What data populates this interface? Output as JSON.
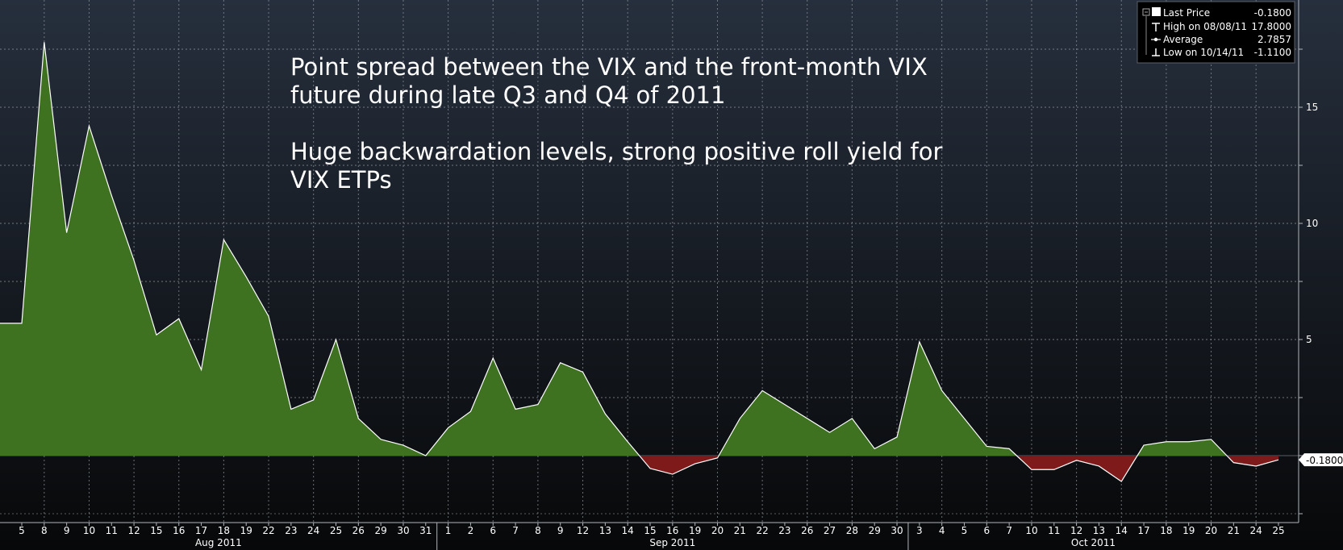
{
  "annotation": {
    "line1": "Point spread between the VIX and the front-month VIX",
    "line2": "future during late Q3 and Q4 of 2011",
    "line3": "Huge backwardation levels, strong positive roll yield for",
    "line4": "VIX ETPs"
  },
  "legend": {
    "last_price_label": "Last Price",
    "last_price_value": "-0.1800",
    "high_label": "High on 08/08/11",
    "high_value": "17.8000",
    "average_label": "Average",
    "average_value": "2.7857",
    "low_label": "Low on 10/14/11",
    "low_value": "-1.1100"
  },
  "last_value_tag": "-0.1800",
  "colors": {
    "positive_fill": "#3e7220",
    "negative_fill": "#7e1a1a",
    "line": "#ffffff",
    "grid": "#8a8f97",
    "bg_top": "#262f3d",
    "bg_bottom": "#070809"
  },
  "chart_data": {
    "type": "area",
    "title": "",
    "xlabel": "",
    "ylabel": "",
    "ylim": [
      -2.6,
      18.2
    ],
    "y_ticks": [
      5,
      10,
      15
    ],
    "grid": true,
    "legend_position": "top-right",
    "months": [
      {
        "label": "Aug 2011",
        "start_index": 0,
        "end_index": 19
      },
      {
        "label": "Sep 2011",
        "start_index": 19,
        "end_index": 40
      },
      {
        "label": "Oct 2011",
        "start_index": 40,
        "end_index": 59
      }
    ],
    "categories": [
      "5",
      "8",
      "9",
      "10",
      "11",
      "12",
      "15",
      "16",
      "17",
      "18",
      "19",
      "22",
      "23",
      "24",
      "25",
      "26",
      "29",
      "30",
      "31",
      "1",
      "2",
      "6",
      "7",
      "8",
      "9",
      "12",
      "13",
      "14",
      "15",
      "16",
      "19",
      "20",
      "21",
      "22",
      "23",
      "26",
      "27",
      "28",
      "29",
      "30",
      "3",
      "4",
      "5",
      "6",
      "7",
      "10",
      "11",
      "12",
      "13",
      "14",
      "17",
      "18",
      "19",
      "20",
      "21",
      "24",
      "25"
    ],
    "series": [
      {
        "values": [
          5.7,
          17.8,
          9.6,
          14.2,
          11.2,
          8.4,
          5.2,
          5.9,
          3.7,
          9.3,
          7.7,
          6.0,
          2.0,
          2.4,
          5.0,
          1.6,
          0.7,
          0.45,
          0.0,
          1.2,
          1.9,
          4.2,
          2.0,
          2.2,
          4.0,
          3.6,
          1.8,
          0.6,
          -0.55,
          -0.8,
          -0.35,
          -0.1,
          1.6,
          2.8,
          2.2,
          1.6,
          1.0,
          1.6,
          0.3,
          0.8,
          4.9,
          2.8,
          1.6,
          0.4,
          0.3,
          -0.6,
          -0.6,
          -0.2,
          -0.45,
          -1.11,
          0.45,
          0.6,
          0.6,
          0.7,
          -0.3,
          -0.45,
          -0.18
        ]
      }
    ]
  }
}
